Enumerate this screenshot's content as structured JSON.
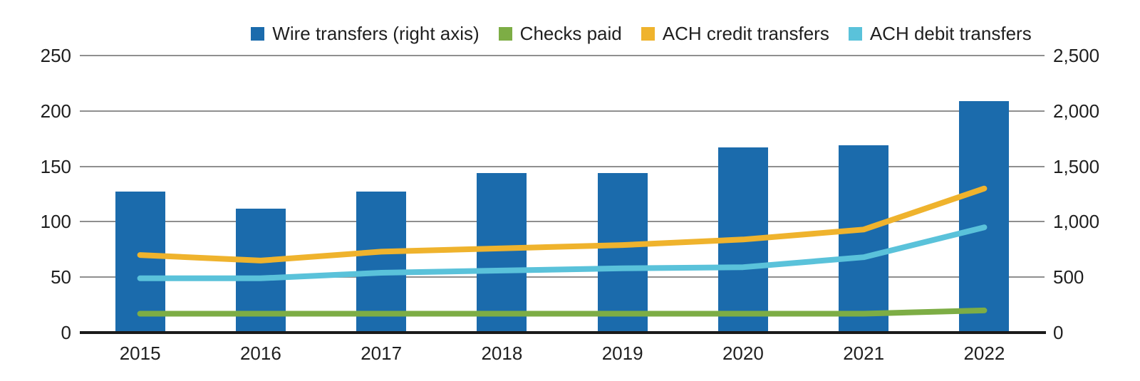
{
  "chart_data": {
    "type": "bar",
    "subtype": "combo-bar-line-dual-axis",
    "categories": [
      "2015",
      "2016",
      "2017",
      "2018",
      "2019",
      "2020",
      "2021",
      "2022"
    ],
    "series": [
      {
        "name": "Wire transfers (right axis)",
        "kind": "bar",
        "axis": "right",
        "color": "#1b6bac",
        "values": [
          1270,
          1120,
          1270,
          1440,
          1440,
          1670,
          1690,
          2090
        ]
      },
      {
        "name": "Checks paid",
        "kind": "line",
        "axis": "left",
        "color": "#7dad45",
        "values": [
          17,
          17,
          17,
          17,
          17,
          17,
          17,
          20
        ]
      },
      {
        "name": "ACH credit transfers",
        "kind": "line",
        "axis": "left",
        "color": "#efb32d",
        "values": [
          70,
          65,
          73,
          76,
          79,
          84,
          93,
          130
        ]
      },
      {
        "name": "ACH debit transfers",
        "kind": "line",
        "axis": "left",
        "color": "#5ac2da",
        "values": [
          49,
          49,
          54,
          56,
          58,
          59,
          68,
          95
        ]
      }
    ],
    "left_axis": {
      "min": 0,
      "max": 250,
      "ticks": [
        {
          "value": 0,
          "label": "0"
        },
        {
          "value": 50,
          "label": "50"
        },
        {
          "value": 100,
          "label": "100"
        },
        {
          "value": 150,
          "label": "150"
        },
        {
          "value": 200,
          "label": "200"
        },
        {
          "value": 250,
          "label": "250"
        }
      ]
    },
    "right_axis": {
      "min": 0,
      "max": 2500,
      "ticks": [
        {
          "value": 0,
          "label": "0"
        },
        {
          "value": 500,
          "label": "500"
        },
        {
          "value": 1000,
          "label": "1,000"
        },
        {
          "value": 1500,
          "label": "1,500"
        },
        {
          "value": 2000,
          "label": "2,000"
        },
        {
          "value": 2500,
          "label": "2,500"
        }
      ]
    },
    "title": "",
    "xlabel": "",
    "ylabel": "",
    "grid": true,
    "legend_position": "top-center"
  },
  "colors": {
    "background": "#ffffff",
    "gridline": "#8f8f8f",
    "axis_line": "#1a1a1a",
    "text": "#1f1f1f"
  }
}
